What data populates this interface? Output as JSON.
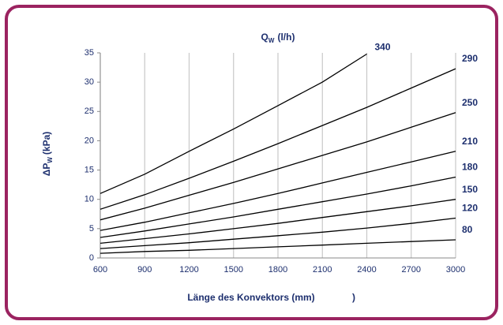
{
  "chart_data": {
    "type": "line",
    "title": {
      "main": "Q",
      "sub": "W",
      "unit": "(l/h)"
    },
    "y_label": {
      "main": "ΔP",
      "sub": "W",
      "unit": "(kPa)"
    },
    "x_label": "Länge des Konvektors (mm)",
    "annotations": [
      ")"
    ],
    "x": [
      600,
      900,
      1200,
      1500,
      1800,
      2100,
      2400,
      2700,
      3000
    ],
    "xlim": [
      600,
      3000
    ],
    "xticks": [
      600,
      900,
      1200,
      1500,
      1800,
      2100,
      2400,
      2700,
      3000
    ],
    "ylim": [
      0,
      35
    ],
    "yticks": [
      0,
      5,
      10,
      15,
      20,
      25,
      30,
      35
    ],
    "grid": "x",
    "series": [
      {
        "name": "80",
        "color": "#000000",
        "values": [
          0.8,
          1.1,
          1.3,
          1.6,
          1.9,
          2.2,
          2.5,
          2.8,
          3.1
        ]
      },
      {
        "name": "120",
        "color": "#000000",
        "values": [
          1.6,
          2.1,
          2.6,
          3.2,
          3.8,
          4.4,
          5.1,
          5.9,
          6.8
        ]
      },
      {
        "name": "150",
        "color": "#000000",
        "values": [
          2.5,
          3.3,
          4.1,
          5.0,
          5.9,
          6.9,
          7.9,
          8.9,
          10.0
        ]
      },
      {
        "name": "180",
        "color": "#000000",
        "values": [
          3.5,
          4.6,
          5.8,
          7.0,
          8.3,
          9.6,
          10.9,
          12.3,
          13.8
        ]
      },
      {
        "name": "210",
        "color": "#000000",
        "values": [
          4.7,
          6.1,
          7.7,
          9.3,
          11.0,
          12.8,
          14.6,
          16.4,
          18.2
        ]
      },
      {
        "name": "250",
        "color": "#000000",
        "values": [
          6.5,
          8.5,
          10.7,
          12.9,
          15.2,
          17.5,
          19.8,
          22.3,
          24.8
        ]
      },
      {
        "name": "290",
        "color": "#000000",
        "values": [
          8.3,
          10.8,
          13.6,
          16.5,
          19.5,
          22.6,
          25.7,
          29.0,
          32.3
        ]
      },
      {
        "name": "340",
        "color": "#000000",
        "values": [
          11.0,
          14.3,
          18.2,
          22.0,
          26.0,
          30.0,
          34.8,
          null,
          null
        ]
      }
    ]
  }
}
